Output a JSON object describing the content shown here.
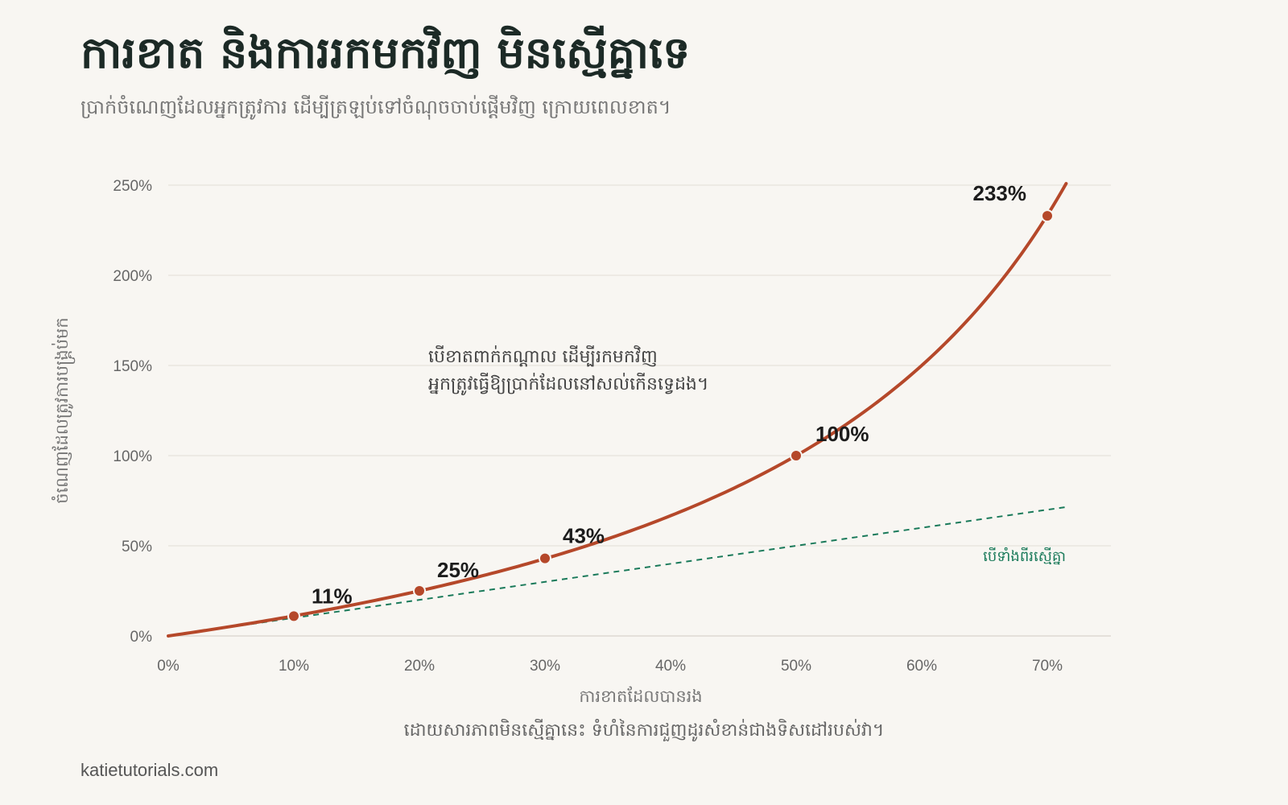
{
  "header": {
    "title": "ការខាត និងការរកមកវិញ មិនស្មើគ្នាទេ",
    "subtitle": "ប្រាក់ចំណេញដែលអ្នកត្រូវការ ដើម្បីត្រឡប់ទៅចំណុចចាប់ផ្តើមវិញ ក្រោយពេលខាត។"
  },
  "chart_data": {
    "type": "line",
    "xlabel": "ការខាតដែលបានរង",
    "ylabel": "ចំណេញដែលត្រូវការបង្គ្រប់មក",
    "xlim": [
      0,
      0.72
    ],
    "ylim": [
      0,
      2.5
    ],
    "x_ticks": [
      0,
      0.1,
      0.2,
      0.3,
      0.4,
      0.5,
      0.6,
      0.7
    ],
    "x_tick_labels": [
      "0%",
      "10%",
      "20%",
      "30%",
      "40%",
      "50%",
      "60%",
      "70%"
    ],
    "y_ticks": [
      0,
      0.5,
      1.0,
      1.5,
      2.0,
      2.5
    ],
    "y_tick_labels": [
      "0%",
      "50%",
      "100%",
      "150%",
      "200%",
      "250%"
    ],
    "grid": "horizontal",
    "series": [
      {
        "formula": "gain_needed = loss / (1 - loss)",
        "color": "#b5482a",
        "style": "solid",
        "x_end": 0.715
      },
      {
        "name": "បើទាំងពីរស្មើគ្នា",
        "formula": "gain_needed = loss",
        "color": "#1a7a5a",
        "style": "dashed",
        "x_end": 0.715
      }
    ],
    "highlighted_points": [
      {
        "x": 0.1,
        "y": 0.11,
        "label": "11%"
      },
      {
        "x": 0.2,
        "y": 0.25,
        "label": "25%"
      },
      {
        "x": 0.3,
        "y": 0.43,
        "label": "43%"
      },
      {
        "x": 0.5,
        "y": 1.0,
        "label": "100%"
      },
      {
        "x": 0.7,
        "y": 2.33,
        "label": "233%"
      }
    ],
    "annotation": {
      "lines": [
        "បើខាតពាក់កណ្តាល ដើម្បីរកមកវិញ",
        "អ្នកត្រូវធ្វើឱ្យប្រាក់ដែលនៅសល់កើនទ្វេដង។"
      ]
    },
    "caption": "ដោយសារភាពមិនស្មើគ្នានេះ ទំហំនៃការជួញដូរសំខាន់ជាងទិសដៅរបស់វា។"
  },
  "footer": {
    "site": "katietutorials.com"
  }
}
